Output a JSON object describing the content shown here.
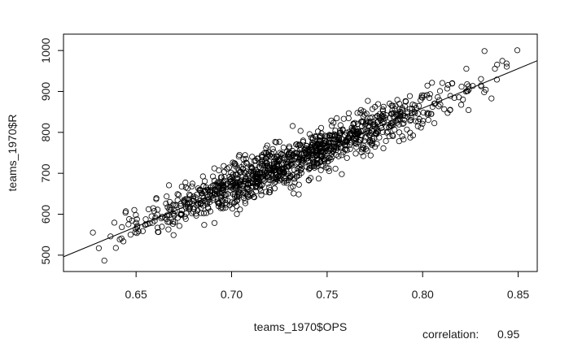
{
  "chart_data": {
    "type": "scatter",
    "xlabel": "teams_1970$OPS",
    "ylabel": "teams_1970$R",
    "xlim": [
      0.612,
      0.86
    ],
    "ylim": [
      460,
      1040
    ],
    "x_ticks": [
      0.65,
      0.7,
      0.75,
      0.8,
      0.85
    ],
    "x_tick_labels": [
      "0.65",
      "0.70",
      "0.75",
      "0.80",
      "0.85"
    ],
    "y_ticks": [
      500,
      600,
      700,
      800,
      900,
      1000
    ],
    "y_tick_labels": [
      "500",
      "600",
      "700",
      "800",
      "900",
      "1000"
    ],
    "annotation": {
      "label": "correlation:",
      "value": "0.95"
    },
    "regression_line": {
      "x": [
        0.612,
        0.86
      ],
      "y": [
        496,
        975
      ]
    },
    "point_count": 1200,
    "random_seed": 1970,
    "marker": "open-circle",
    "fit": {
      "intercept": -687.8,
      "slope": 1934.7,
      "residual_sd": 26
    }
  }
}
